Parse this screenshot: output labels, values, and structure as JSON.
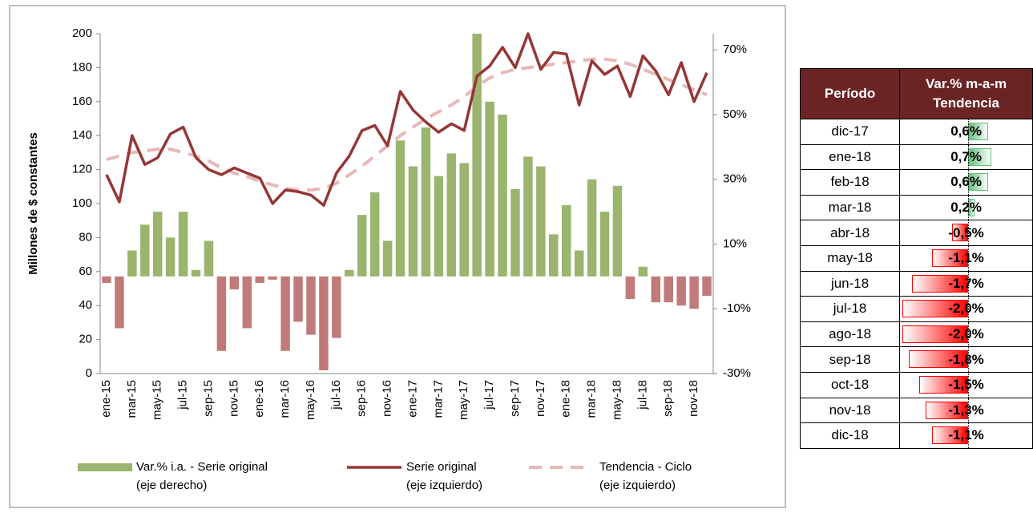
{
  "chart_data": {
    "type": "combo",
    "ylabel": "Millones de $ constantes",
    "categories": [
      "ene-15",
      null,
      "mar-15",
      null,
      "may-15",
      null,
      "jul-15",
      null,
      "sep-15",
      null,
      "nov-15",
      null,
      "ene-16",
      null,
      "mar-16",
      null,
      "may-16",
      null,
      "jul-16",
      null,
      "sep-16",
      null,
      "nov-16",
      null,
      "ene-17",
      null,
      "mar-17",
      null,
      "may-17",
      null,
      "jul-17",
      null,
      "sep-17",
      null,
      "nov-17",
      null,
      "ene-18",
      null,
      "mar-18",
      null,
      "may-18",
      null,
      "jul-18",
      null,
      "sep-18",
      null,
      "nov-18",
      null
    ],
    "ylim": [
      0,
      200
    ],
    "yticks": [
      0,
      20,
      40,
      60,
      80,
      100,
      120,
      140,
      160,
      180,
      200
    ],
    "y2lim": [
      -30,
      75
    ],
    "y2ticks": [
      {
        "value": -30,
        "label": "-30%"
      },
      {
        "value": -10,
        "label": "-10%"
      },
      {
        "value": 10,
        "label": "10%"
      },
      {
        "value": 30,
        "label": "30%"
      },
      {
        "value": 50,
        "label": "50%"
      },
      {
        "value": 70,
        "label": "70%"
      }
    ],
    "series": [
      {
        "name": "Var.% i.a. - Serie original\n(eje derecho)",
        "type": "bar",
        "axis": "y2",
        "color": "#9bb46e",
        "negative_color": "#c07a7a",
        "values": [
          -2,
          -16,
          8,
          16,
          20,
          12,
          20,
          2,
          11,
          -23,
          -4,
          -16,
          -2,
          -1,
          -23,
          -14,
          -18,
          -29,
          -19,
          2,
          19,
          26,
          11,
          42,
          34,
          46,
          31,
          38,
          35,
          75,
          54,
          50,
          27,
          37,
          34,
          13,
          22,
          8,
          30,
          20,
          28,
          -7,
          3,
          -8,
          -8,
          -9,
          -10,
          -6
        ]
      },
      {
        "name": "Serie original\n(eje izquierdo)",
        "type": "line",
        "color": "#953735",
        "dash": false,
        "values": [
          117,
          101,
          140,
          123,
          127,
          141,
          145,
          127,
          120,
          117,
          121,
          118,
          115,
          100,
          108,
          107,
          105,
          99,
          118,
          128,
          143,
          146,
          134,
          166,
          155,
          148,
          142,
          147,
          143,
          175,
          181,
          192,
          180,
          200,
          179,
          189,
          188,
          158,
          184,
          176,
          181,
          163,
          187,
          178,
          164,
          183,
          160,
          177
        ]
      },
      {
        "name": "Tendencia - Ciclo\n(eje izquierdo)",
        "type": "line",
        "color": "#e6b9b8",
        "dash": true,
        "values": [
          126,
          128,
          130,
          131,
          132,
          132,
          130,
          128,
          125,
          121,
          118,
          116,
          113,
          111,
          109,
          108,
          108,
          109,
          112,
          117,
          122,
          128,
          134,
          140,
          145,
          150,
          154,
          158,
          163,
          169,
          174,
          177,
          179,
          180,
          181,
          182,
          183,
          184,
          185,
          185,
          184,
          182,
          179,
          176,
          173,
          170,
          167,
          164
        ]
      }
    ]
  },
  "table": {
    "columns": [
      "Período",
      "Var.% m-a-m\nTendencia"
    ],
    "periods": [
      "dic-17",
      "ene-18",
      "feb-18",
      "mar-18",
      "abr-18",
      "may-18",
      "jun-18",
      "jul-18",
      "ago-18",
      "sep-18",
      "oct-18",
      "nov-18",
      "dic-18"
    ],
    "values": [
      0.6,
      0.7,
      0.6,
      0.2,
      -0.5,
      -1.1,
      -1.7,
      -2.0,
      -2.0,
      -1.8,
      -1.5,
      -1.3,
      -1.1
    ],
    "value_labels": [
      "0,6%",
      "0,7%",
      "0,6%",
      "0,2%",
      "-0,5%",
      "-1,1%",
      "-1,7%",
      "-2,0%",
      "-2,0%",
      "-1,8%",
      "-1,5%",
      "-1,3%",
      "-1,1%"
    ],
    "positive_color": "#63be7b",
    "negative_color": "#ff0000"
  }
}
